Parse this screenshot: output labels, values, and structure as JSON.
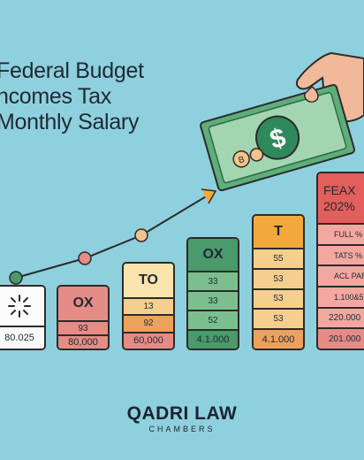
{
  "title": {
    "line1": "Federal Budget",
    "line2": "ncomes Tax",
    "line3": "Monthly Salary"
  },
  "bars": [
    {
      "head": "",
      "rows": [
        "80.025"
      ]
    },
    {
      "head": "OX",
      "rows": [
        "93",
        "80,000"
      ]
    },
    {
      "head": "TO",
      "rows": [
        "13",
        "92",
        "60,000"
      ]
    },
    {
      "head": "OX",
      "rows": [
        "33",
        "33",
        "52",
        "4.1.000"
      ]
    },
    {
      "head": "T",
      "rows": [
        "55",
        "53",
        "53",
        "53",
        "4.1.000"
      ]
    },
    {
      "head": "FEAX 202%",
      "rows": [
        "FULL %",
        "TATS %",
        "ACL PAR",
        "1.100&5",
        "220.000",
        "201.000"
      ]
    }
  ],
  "banknote": {
    "symbol": "$",
    "small": "B"
  },
  "logo": {
    "name": "QADRI LAW",
    "sub": "CHAMBERS"
  },
  "colors": {
    "background": "#8fd0de",
    "white": "#fafafa",
    "pink": "#e48c85",
    "peach": "#f2c48c",
    "orange": "#eda15c",
    "green": "#4a9a6c",
    "lightgreen": "#7cbf8e",
    "red": "#e25f5b"
  }
}
